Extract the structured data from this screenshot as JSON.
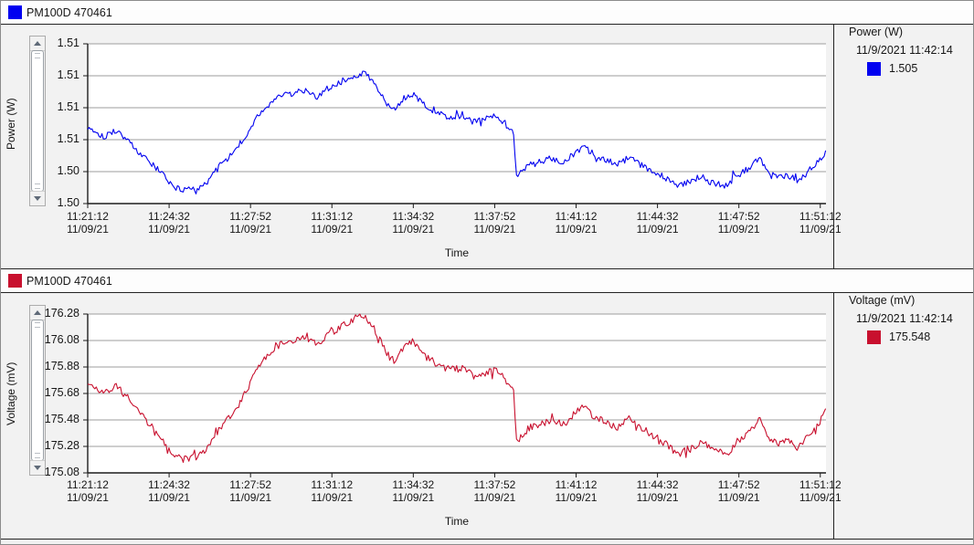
{
  "app": {
    "bottom_strip": "",
    "grid_color": "#9e9e9e",
    "axis_color": "#1c1c1c",
    "plot_bg": "#ffffff"
  },
  "chart_data": [
    {
      "type": "line",
      "legend": {
        "label": "PM100D 470461",
        "color": "#0000f0"
      },
      "ylabel": "Power (W)",
      "xlabel": "Time",
      "ylim": [
        1.502,
        1.512
      ],
      "y_tick_labels": [
        "1.51",
        "1.51",
        "1.51",
        "1.51",
        "1.50",
        "1.50"
      ],
      "y_tick_values": [
        1.512,
        1.51,
        1.508,
        1.506,
        1.504,
        1.502
      ],
      "x_ticks": [
        {
          "time": "11:21:12",
          "date": "11/09/21"
        },
        {
          "time": "11:24:32",
          "date": "11/09/21"
        },
        {
          "time": "11:27:52",
          "date": "11/09/21"
        },
        {
          "time": "11:31:12",
          "date": "11/09/21"
        },
        {
          "time": "11:34:32",
          "date": "11/09/21"
        },
        {
          "time": "11:37:52",
          "date": "11/09/21"
        },
        {
          "time": "11:41:12",
          "date": "11/09/21"
        },
        {
          "time": "11:44:32",
          "date": "11/09/21"
        },
        {
          "time": "11:47:52",
          "date": "11/09/21"
        },
        {
          "time": "11:51:12",
          "date": "11/09/21"
        }
      ],
      "x_tick_interval_s": 200,
      "x_span_s": 1814,
      "info": {
        "title": "Power (W)",
        "timestamp": "11/9/2021 11:42:14",
        "value": "1.505",
        "color": "#0000f0"
      },
      "series": {
        "name": "Power (W)",
        "color": "#0000f0",
        "noise_amp": 0.0002,
        "seed": 101,
        "points": [
          [
            0,
            1.5068
          ],
          [
            40,
            1.5062
          ],
          [
            70,
            1.5066
          ],
          [
            100,
            1.5059
          ],
          [
            130,
            1.5051
          ],
          [
            160,
            1.5044
          ],
          [
            185,
            1.5038
          ],
          [
            210,
            1.5031
          ],
          [
            235,
            1.5028
          ],
          [
            265,
            1.5029
          ],
          [
            295,
            1.5034
          ],
          [
            325,
            1.5044
          ],
          [
            355,
            1.5051
          ],
          [
            385,
            1.5061
          ],
          [
            415,
            1.5074
          ],
          [
            445,
            1.5083
          ],
          [
            475,
            1.5087
          ],
          [
            505,
            1.5089
          ],
          [
            535,
            1.5091
          ],
          [
            565,
            1.5087
          ],
          [
            590,
            1.5092
          ],
          [
            620,
            1.5096
          ],
          [
            650,
            1.51
          ],
          [
            680,
            1.5102
          ],
          [
            700,
            1.5097
          ],
          [
            720,
            1.5089
          ],
          [
            740,
            1.5081
          ],
          [
            755,
            1.5078
          ],
          [
            775,
            1.5086
          ],
          [
            800,
            1.5089
          ],
          [
            830,
            1.5081
          ],
          [
            860,
            1.5077
          ],
          [
            890,
            1.5074
          ],
          [
            920,
            1.5075
          ],
          [
            950,
            1.5071
          ],
          [
            980,
            1.5073
          ],
          [
            1005,
            1.5075
          ],
          [
            1030,
            1.5068
          ],
          [
            1047,
            1.5064
          ],
          [
            1053,
            1.5036
          ],
          [
            1065,
            1.504
          ],
          [
            1085,
            1.5044
          ],
          [
            1110,
            1.5046
          ],
          [
            1140,
            1.5048
          ],
          [
            1170,
            1.5046
          ],
          [
            1200,
            1.5052
          ],
          [
            1220,
            1.5056
          ],
          [
            1240,
            1.505
          ],
          [
            1270,
            1.5048
          ],
          [
            1300,
            1.5044
          ],
          [
            1330,
            1.5049
          ],
          [
            1360,
            1.5044
          ],
          [
            1390,
            1.504
          ],
          [
            1420,
            1.5036
          ],
          [
            1450,
            1.5031
          ],
          [
            1480,
            1.5034
          ],
          [
            1510,
            1.5037
          ],
          [
            1540,
            1.5033
          ],
          [
            1570,
            1.5031
          ],
          [
            1600,
            1.5038
          ],
          [
            1630,
            1.5043
          ],
          [
            1650,
            1.5049
          ],
          [
            1670,
            1.504
          ],
          [
            1695,
            1.5036
          ],
          [
            1720,
            1.5038
          ],
          [
            1745,
            1.5034
          ],
          [
            1770,
            1.504
          ],
          [
            1795,
            1.5046
          ],
          [
            1814,
            1.5053
          ]
        ]
      }
    },
    {
      "type": "line",
      "legend": {
        "label": "PM100D 470461",
        "color": "#c8102e"
      },
      "ylabel": "Voltage (mV)",
      "xlabel": "Time",
      "ylim": [
        175.08,
        176.28
      ],
      "y_tick_labels": [
        "176.28",
        "176.08",
        "175.88",
        "175.68",
        "175.48",
        "175.28",
        "175.08"
      ],
      "y_tick_values": [
        176.28,
        176.08,
        175.88,
        175.68,
        175.48,
        175.28,
        175.08
      ],
      "x_ticks": [
        {
          "time": "11:21:12",
          "date": "11/09/21"
        },
        {
          "time": "11:24:32",
          "date": "11/09/21"
        },
        {
          "time": "11:27:52",
          "date": "11/09/21"
        },
        {
          "time": "11:31:12",
          "date": "11/09/21"
        },
        {
          "time": "11:34:32",
          "date": "11/09/21"
        },
        {
          "time": "11:37:52",
          "date": "11/09/21"
        },
        {
          "time": "11:41:12",
          "date": "11/09/21"
        },
        {
          "time": "11:44:32",
          "date": "11/09/21"
        },
        {
          "time": "11:47:52",
          "date": "11/09/21"
        },
        {
          "time": "11:51:12",
          "date": "11/09/21"
        }
      ],
      "x_tick_interval_s": 200,
      "x_span_s": 1814,
      "info": {
        "title": "Voltage (mV)",
        "timestamp": "11/9/2021 11:42:14",
        "value": "175.548",
        "color": "#c8102e"
      },
      "series": {
        "name": "Voltage (mV)",
        "color": "#c8102e",
        "noise_amp": 0.026,
        "seed": 202,
        "points": [
          [
            0,
            175.77
          ],
          [
            40,
            175.68
          ],
          [
            70,
            175.74
          ],
          [
            100,
            175.64
          ],
          [
            130,
            175.52
          ],
          [
            160,
            175.42
          ],
          [
            185,
            175.33
          ],
          [
            210,
            175.22
          ],
          [
            235,
            175.18
          ],
          [
            265,
            175.2
          ],
          [
            295,
            175.27
          ],
          [
            325,
            175.42
          ],
          [
            355,
            175.52
          ],
          [
            385,
            175.67
          ],
          [
            415,
            175.86
          ],
          [
            445,
            175.99
          ],
          [
            475,
            176.05
          ],
          [
            505,
            176.08
          ],
          [
            535,
            176.11
          ],
          [
            565,
            176.05
          ],
          [
            590,
            176.12
          ],
          [
            620,
            176.18
          ],
          [
            650,
            176.24
          ],
          [
            680,
            176.27
          ],
          [
            700,
            176.19
          ],
          [
            720,
            176.08
          ],
          [
            740,
            175.96
          ],
          [
            755,
            175.92
          ],
          [
            775,
            176.03
          ],
          [
            800,
            176.08
          ],
          [
            830,
            175.96
          ],
          [
            860,
            175.9
          ],
          [
            890,
            175.86
          ],
          [
            920,
            175.87
          ],
          [
            950,
            175.81
          ],
          [
            980,
            175.84
          ],
          [
            1005,
            175.87
          ],
          [
            1030,
            175.77
          ],
          [
            1047,
            175.71
          ],
          [
            1053,
            175.3
          ],
          [
            1065,
            175.36
          ],
          [
            1085,
            175.42
          ],
          [
            1110,
            175.45
          ],
          [
            1140,
            175.47
          ],
          [
            1170,
            175.45
          ],
          [
            1200,
            175.54
          ],
          [
            1220,
            175.59
          ],
          [
            1240,
            175.5
          ],
          [
            1270,
            175.47
          ],
          [
            1300,
            175.42
          ],
          [
            1330,
            175.49
          ],
          [
            1360,
            175.42
          ],
          [
            1390,
            175.36
          ],
          [
            1420,
            175.3
          ],
          [
            1450,
            175.22
          ],
          [
            1480,
            175.27
          ],
          [
            1510,
            175.31
          ],
          [
            1540,
            175.25
          ],
          [
            1570,
            175.22
          ],
          [
            1600,
            175.33
          ],
          [
            1630,
            175.4
          ],
          [
            1650,
            175.49
          ],
          [
            1670,
            175.36
          ],
          [
            1695,
            175.3
          ],
          [
            1720,
            175.33
          ],
          [
            1745,
            175.27
          ],
          [
            1770,
            175.36
          ],
          [
            1795,
            175.45
          ],
          [
            1814,
            175.55
          ]
        ]
      }
    }
  ]
}
